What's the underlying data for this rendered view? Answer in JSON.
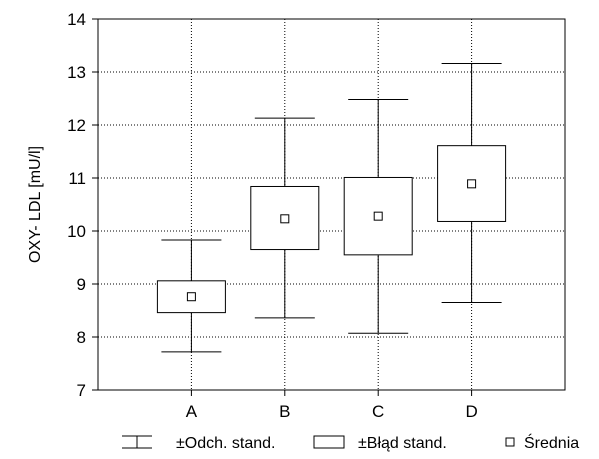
{
  "chart_data": {
    "type": "box",
    "ylabel": "OXY- LDL [mU/l]",
    "xlabel": "",
    "title": "",
    "ylim": [
      7,
      14
    ],
    "yticks": [
      7,
      8,
      9,
      10,
      11,
      12,
      13,
      14
    ],
    "grid": true,
    "legend_position": "bottom",
    "categories": [
      "A",
      "B",
      "C",
      "D"
    ],
    "series": [
      {
        "category": "A",
        "mean": 8.76,
        "se_low": 8.46,
        "se_high": 9.06,
        "sd_low": 7.72,
        "sd_high": 9.83
      },
      {
        "category": "B",
        "mean": 10.23,
        "se_low": 9.65,
        "se_high": 10.84,
        "sd_low": 8.36,
        "sd_high": 12.13
      },
      {
        "category": "C",
        "mean": 10.28,
        "se_low": 9.55,
        "se_high": 11.01,
        "sd_low": 8.07,
        "sd_high": 12.48
      },
      {
        "category": "D",
        "mean": 10.89,
        "se_low": 10.18,
        "se_high": 11.61,
        "sd_low": 8.65,
        "sd_high": 13.16
      }
    ],
    "legend": [
      {
        "kind": "whisker",
        "label": "±Odch. stand."
      },
      {
        "kind": "box",
        "label": "±Błąd stand."
      },
      {
        "kind": "mean",
        "label": "Średnia"
      }
    ]
  }
}
